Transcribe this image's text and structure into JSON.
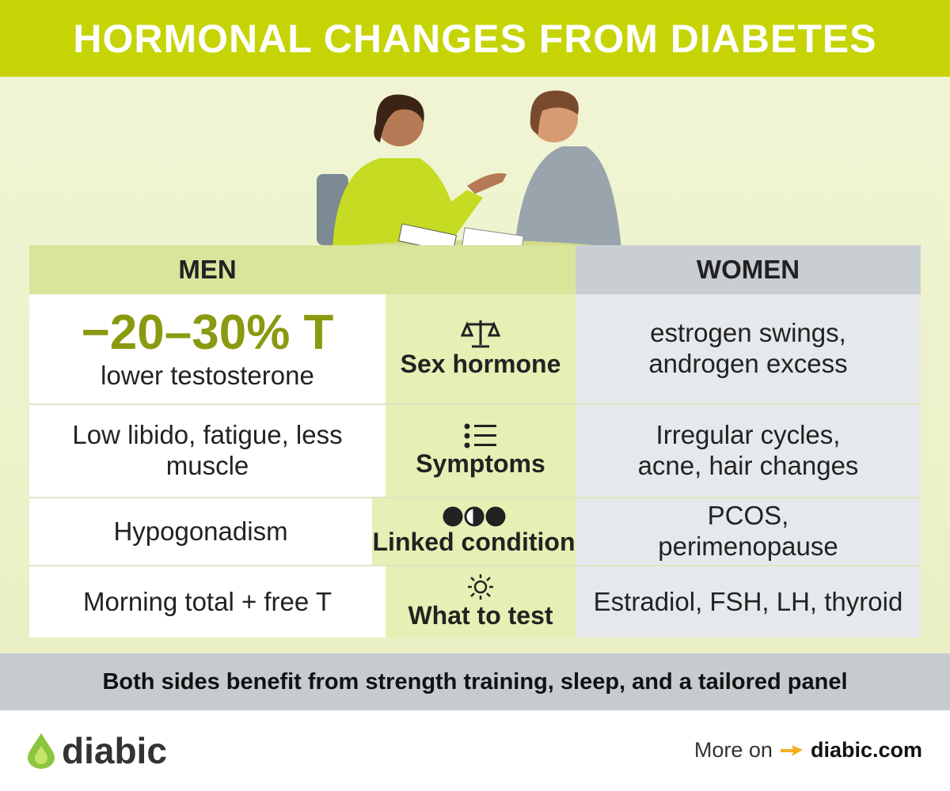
{
  "header": {
    "title": "HORMONAL CHANGES FROM DIABETES"
  },
  "table": {
    "headers": [
      "MEN",
      "WOMEN"
    ],
    "rows": [
      {
        "men": "−20–30% T",
        "men_note": "lower testosterone",
        "topic": "Sex hormone",
        "women": "estrogen swings, androgen excess"
      },
      {
        "men": "Low libido, fatigue, less muscle",
        "topic": "Symptoms",
        "women": "Irregular cycles, acne, hair changes"
      },
      {
        "men": "Hypogonadism",
        "topic": "Linked condition",
        "women": "PCOS, perimenopause"
      },
      {
        "men": "Morning total + free T",
        "topic": "What to test",
        "women": "Estradiol, FSH, LH, thyroid"
      }
    ]
  },
  "footer": {
    "note": "Both sides benefit from strength training, sleep, and a tailored panel"
  },
  "brand": {
    "name": "diabic",
    "cta": "More on",
    "link": "diabic.com"
  }
}
